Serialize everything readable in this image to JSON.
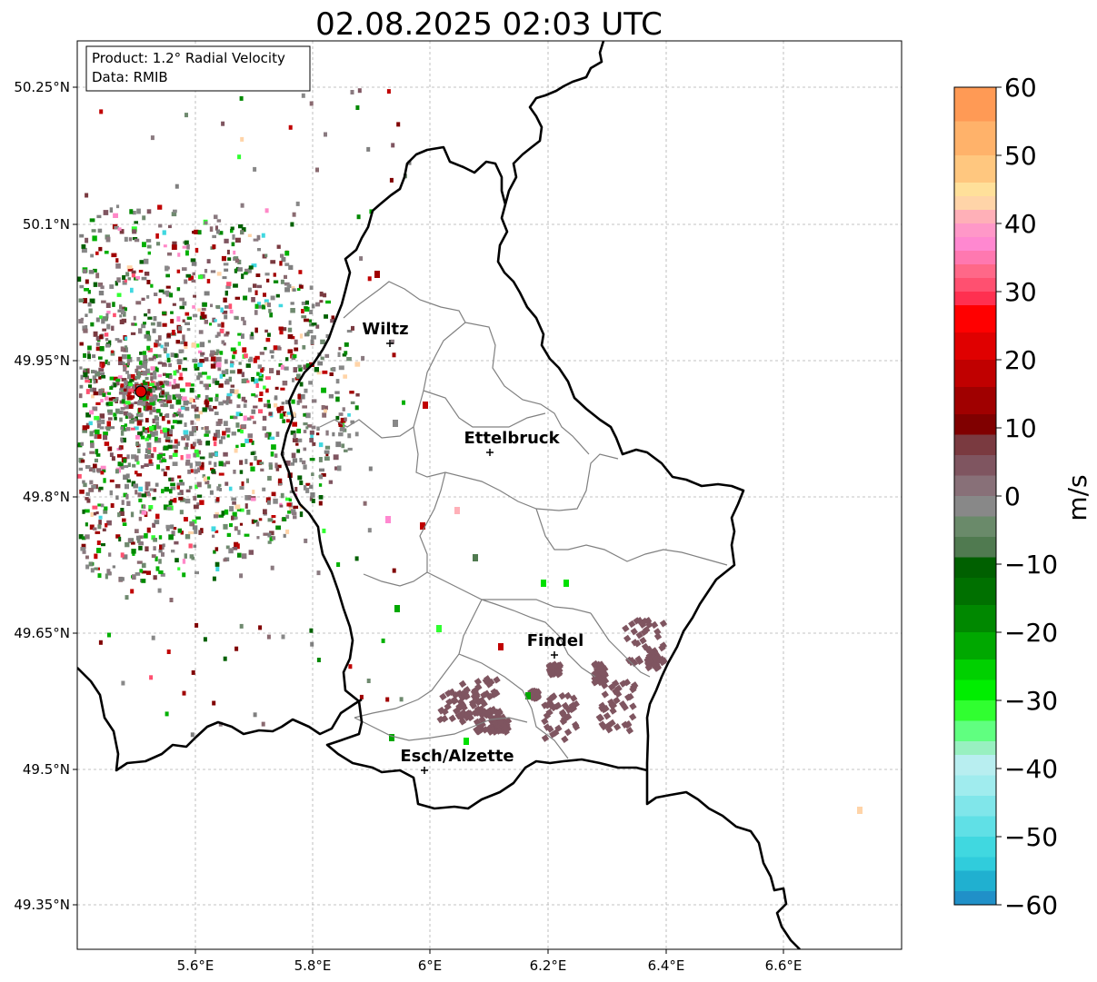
{
  "title": "02.08.2025 02:03 UTC",
  "info": {
    "product": "Product: 1.2° Radial Velocity",
    "source": "Data: RMIB"
  },
  "axes": {
    "lat_labels": [
      "50.25°N",
      "50.1°N",
      "49.95°N",
      "49.8°N",
      "49.65°N",
      "49.5°N",
      "49.35°N"
    ],
    "lon_labels": [
      "5.6°E",
      "5.8°E",
      "6°E",
      "6.2°E",
      "6.4°E",
      "6.6°E"
    ]
  },
  "cities": [
    {
      "name": "Wiltz"
    },
    {
      "name": "Ettelbruck"
    },
    {
      "name": "Findel"
    },
    {
      "name": "Esch/Alzette"
    }
  ],
  "colorbar": {
    "label": "m/s",
    "ticks": [
      "60",
      "50",
      "40",
      "30",
      "20",
      "10",
      "0",
      "−10",
      "−20",
      "−30",
      "−40",
      "−50",
      "−60"
    ]
  },
  "colors": {
    "border": "#000000",
    "canton": "#808080",
    "radar_site": "#e00000",
    "grid": "#b0b0b0"
  }
}
